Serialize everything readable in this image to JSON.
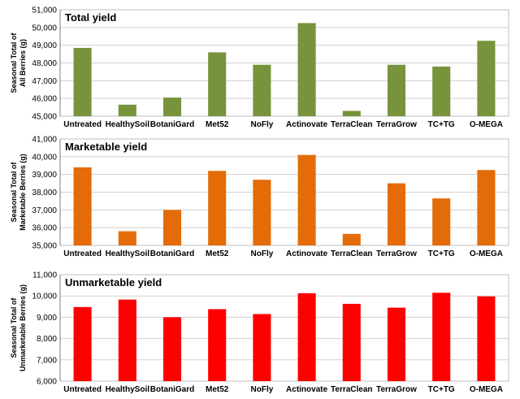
{
  "chart_data": [
    {
      "type": "bar",
      "title": "Total yield",
      "ylabel": [
        "Seasonal Total of",
        "All Berries (g)"
      ],
      "xlabel": "",
      "categories": [
        "Untreated",
        "HealthySoil",
        "BotaniGard",
        "Met52",
        "NoFly",
        "Actinovate",
        "TerraClean",
        "TerraGrow",
        "TC+TG",
        "O-MEGA"
      ],
      "values": [
        48850,
        45650,
        46050,
        48600,
        47900,
        50250,
        45300,
        47900,
        47800,
        49250
      ],
      "ylim": [
        45000,
        51000
      ],
      "yticks": [
        45000,
        46000,
        47000,
        48000,
        49000,
        50000,
        51000
      ],
      "ytick_labels": [
        "45,000",
        "46,000",
        "47,000",
        "48,000",
        "49,000",
        "50,000",
        "51,000"
      ],
      "color": "#77933c",
      "grid": true
    },
    {
      "type": "bar",
      "title": "Marketable yield",
      "ylabel": [
        "Seasonal Total of",
        "Marketable Berries (g)"
      ],
      "xlabel": "",
      "categories": [
        "Untreated",
        "HealthySoil",
        "BotaniGard",
        "Met52",
        "NoFly",
        "Actinovate",
        "TerraClean",
        "TerraGrow",
        "TC+TG",
        "O-MEGA"
      ],
      "values": [
        39400,
        35800,
        37000,
        39200,
        38700,
        40100,
        35650,
        38500,
        37650,
        39250
      ],
      "ylim": [
        35000,
        41000
      ],
      "yticks": [
        35000,
        36000,
        37000,
        38000,
        39000,
        40000,
        41000
      ],
      "ytick_labels": [
        "35,000",
        "36,000",
        "37,000",
        "38,000",
        "39,000",
        "40,000",
        "41,000"
      ],
      "color": "#e36c09",
      "grid": true
    },
    {
      "type": "bar",
      "title": "Unmarketable yield",
      "ylabel": [
        "Seasonal Total of",
        "Unmarketable Berries (g)"
      ],
      "xlabel": "",
      "categories": [
        "Untreated",
        "HealthySoil",
        "BotaniGard",
        "Met52",
        "NoFly",
        "Actinovate",
        "TerraClean",
        "TerraGrow",
        "TC+TG",
        "O-MEGA"
      ],
      "values": [
        9480,
        9830,
        9000,
        9380,
        9150,
        10130,
        9630,
        9450,
        10150,
        9980
      ],
      "ylim": [
        6000,
        11000
      ],
      "yticks": [
        6000,
        7000,
        8000,
        9000,
        10000,
        11000
      ],
      "ytick_labels": [
        "6,000",
        "7,000",
        "8,000",
        "9,000",
        "10,000",
        "11,000"
      ],
      "color": "#ff0000",
      "grid": true
    }
  ]
}
